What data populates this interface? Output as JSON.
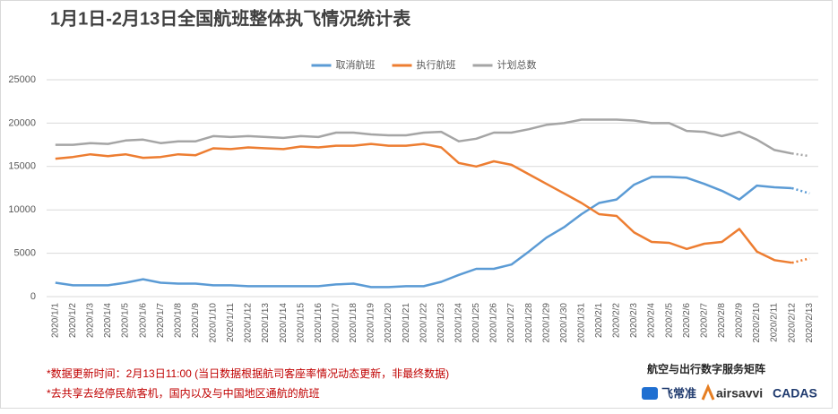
{
  "chart_data": {
    "type": "line",
    "title": "1月1日-2月13日全国航班整体执飞情况统计表",
    "categories": [
      "2020/1/1",
      "2020/1/2",
      "2020/1/3",
      "2020/1/4",
      "2020/1/5",
      "2020/1/6",
      "2020/1/7",
      "2020/1/8",
      "2020/1/9",
      "2020/1/10",
      "2020/1/11",
      "2020/1/12",
      "2020/1/13",
      "2020/1/14",
      "2020/1/15",
      "2020/1/16",
      "2020/1/17",
      "2020/1/18",
      "2020/1/19",
      "2020/1/20",
      "2020/1/21",
      "2020/1/22",
      "2020/1/23",
      "2020/1/24",
      "2020/1/25",
      "2020/1/26",
      "2020/1/27",
      "2020/1/28",
      "2020/1/29",
      "2020/1/30",
      "2020/1/31",
      "2020/2/1",
      "2020/2/2",
      "2020/2/3",
      "2020/2/4",
      "2020/2/5",
      "2020/2/6",
      "2020/2/7",
      "2020/2/8",
      "2020/2/9",
      "2020/2/10",
      "2020/2/11",
      "2020/2/12",
      "2020/2/13"
    ],
    "series": [
      {
        "name": "取消航班",
        "color": "#5b9bd5",
        "values": [
          1600,
          1300,
          1300,
          1300,
          1600,
          2000,
          1600,
          1500,
          1500,
          1300,
          1300,
          1200,
          1200,
          1200,
          1200,
          1200,
          1400,
          1500,
          1100,
          1100,
          1200,
          1200,
          1700,
          2500,
          3200,
          3200,
          3700,
          5200,
          6800,
          8000,
          9500,
          10800,
          11200,
          12900,
          13800,
          13800,
          13700,
          13000,
          12200,
          11200,
          12800,
          12600,
          12500,
          11900
        ]
      },
      {
        "name": "执行航班",
        "color": "#ed7d31",
        "values": [
          15900,
          16100,
          16400,
          16200,
          16400,
          16000,
          16100,
          16400,
          16300,
          17100,
          17000,
          17200,
          17100,
          17000,
          17300,
          17200,
          17400,
          17400,
          17600,
          17400,
          17400,
          17600,
          17200,
          15400,
          15000,
          15600,
          15200,
          14100,
          13000,
          11900,
          10800,
          9500,
          9300,
          7400,
          6300,
          6200,
          5500,
          6100,
          6300,
          7800,
          5200,
          4200,
          3900,
          4400
        ]
      },
      {
        "name": "计划总数",
        "color": "#a5a5a5",
        "values": [
          17500,
          17500,
          17700,
          17600,
          18000,
          18100,
          17700,
          17900,
          17900,
          18500,
          18400,
          18500,
          18400,
          18300,
          18500,
          18400,
          18900,
          18900,
          18700,
          18600,
          18600,
          18900,
          19000,
          17900,
          18200,
          18900,
          18900,
          19300,
          19800,
          20000,
          20400,
          20400,
          20400,
          20300,
          20000,
          20000,
          19100,
          19000,
          18500,
          19000,
          18100,
          16900,
          16500,
          16200
        ]
      }
    ],
    "ylim": [
      0,
      25000
    ],
    "yticks": [
      0,
      5000,
      10000,
      15000,
      20000,
      25000
    ],
    "grid": true,
    "legend": "top",
    "dotted_last_segment": true
  },
  "notes": [
    "*数据更新时间：2月13日11:00 (当日数据根据航司客座率情况动态更新，非最终数据)",
    "*去共享去经停民航客机，国内以及与中国地区通航的航班"
  ],
  "brand": {
    "title": "航空与出行数字服务矩阵",
    "logos": [
      "飞常准",
      "airsavvi",
      "CADAS"
    ]
  }
}
